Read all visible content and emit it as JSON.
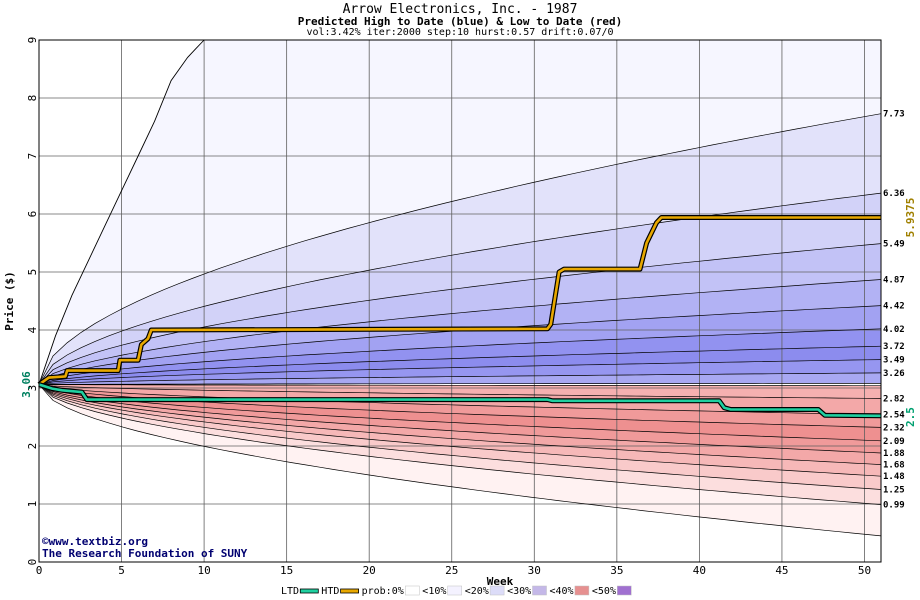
{
  "chart_data": {
    "type": "area",
    "title": "Arrow Electronics, Inc. - 1987",
    "subtitle": "Predicted High to Date (blue) &  Low to Date (red)",
    "params": "vol:3.42% iter:2000 step:10 hurst:0.57 drift:0.07/0",
    "xlabel": "Week",
    "ylabel": "Price ($)",
    "xlim": [
      0,
      51
    ],
    "ylim": [
      0,
      9
    ],
    "x_ticks": [
      0,
      5,
      10,
      15,
      20,
      25,
      30,
      35,
      40,
      45,
      50
    ],
    "y_ticks": [
      0,
      1,
      2,
      3,
      4,
      5,
      6,
      7,
      8,
      9
    ],
    "grid": true,
    "start_price": 3.06,
    "start_label": "3.06",
    "right_labels": [
      "7.73",
      "6.36",
      "5.49",
      "4.87",
      "4.42",
      "4.02",
      "3.72",
      "3.49",
      "3.26",
      "2.82",
      "2.54",
      "2.32",
      "2.09",
      "1.88",
      "1.68",
      "1.48",
      "1.25",
      "0.99"
    ],
    "high_envelope_end": [
      9.0,
      7.73,
      6.36,
      5.49,
      4.87,
      4.42,
      4.02,
      3.72,
      3.49,
      3.26,
      3.08
    ],
    "low_envelope_end": [
      3.04,
      2.82,
      2.54,
      2.32,
      2.09,
      1.88,
      1.68,
      1.48,
      1.25,
      0.99,
      0.45
    ],
    "upper_outer_curve": [
      [
        0,
        3.06
      ],
      [
        1,
        3.9
      ],
      [
        2,
        4.6
      ],
      [
        3,
        5.2
      ],
      [
        4,
        5.8
      ],
      [
        5,
        6.4
      ],
      [
        6,
        7.0
      ],
      [
        7,
        7.6
      ],
      [
        8,
        8.3
      ],
      [
        9,
        8.7
      ],
      [
        9.5,
        8.85
      ],
      [
        10,
        9.0
      ]
    ],
    "series": [
      {
        "name": "HTD",
        "color": "#e8a800",
        "x": [
          0,
          0.3,
          0.6,
          1.6,
          1.7,
          4.8,
          4.9,
          6.0,
          6.2,
          6.6,
          6.8,
          30.8,
          31.0,
          31.5,
          31.8,
          36.4,
          36.8,
          37.4,
          37.7,
          51
        ],
        "y": [
          3.06,
          3.12,
          3.18,
          3.2,
          3.3,
          3.3,
          3.48,
          3.48,
          3.75,
          3.85,
          4.0,
          4.02,
          4.1,
          5.0,
          5.05,
          5.05,
          5.5,
          5.85,
          5.94,
          5.94
        ]
      },
      {
        "name": "LTD",
        "color": "#20d0a0",
        "x": [
          0,
          0.8,
          1.4,
          2.6,
          2.9,
          30.8,
          31.1,
          41.2,
          41.5,
          41.9,
          47.2,
          47.6,
          51
        ],
        "y": [
          3.06,
          2.99,
          2.96,
          2.93,
          2.8,
          2.8,
          2.78,
          2.78,
          2.66,
          2.63,
          2.63,
          2.53,
          2.52
        ]
      }
    ],
    "end_markers": [
      {
        "label": "5.9375",
        "value": 5.94,
        "color": "#a08000"
      },
      {
        "label": "2.5",
        "value": 2.5,
        "color": "#00a070"
      }
    ],
    "legend": {
      "placement": "bottom",
      "items": [
        {
          "label": "LTD",
          "color": "#20d0a0",
          "kind": "line"
        },
        {
          "label": "HTD",
          "color": "#e8a800",
          "kind": "line"
        },
        {
          "label": "prob:0%",
          "color": "#ffffff",
          "kind": "swatch"
        },
        {
          "label": "<10%",
          "color": "#f4f2ff",
          "kind": "swatch"
        },
        {
          "label": "<20%",
          "color": "#dcdcf8",
          "kind": "swatch"
        },
        {
          "label": "<30%",
          "color": "#c4b8e8",
          "kind": "swatch"
        },
        {
          "label": "<40%",
          "color": "#e69090",
          "kind": "swatch"
        },
        {
          "label": "<50%",
          "color": "#a070d0",
          "kind": "swatch"
        }
      ]
    },
    "watermark": {
      "line1": "www.textbiz.org",
      "line2": "The Research Foundation of SUNY",
      "symbol": "©",
      "color": "#000070"
    },
    "colors": {
      "high_bands": [
        "#f6f6ff",
        "#e2e2fa",
        "#d2d2f8",
        "#c2c2f6",
        "#b2b2f4",
        "#a2a2f2",
        "#9292f0",
        "#8c8cee",
        "#9696f0",
        "#a8a8f2"
      ],
      "low_bands": [
        "#f5b0b0",
        "#f3a8a8",
        "#f09a9a",
        "#ee9090",
        "#f09a9a",
        "#f3a8a8",
        "#f6b8b8",
        "#f9caca",
        "#fcdede",
        "#fff2f2"
      ]
    }
  }
}
